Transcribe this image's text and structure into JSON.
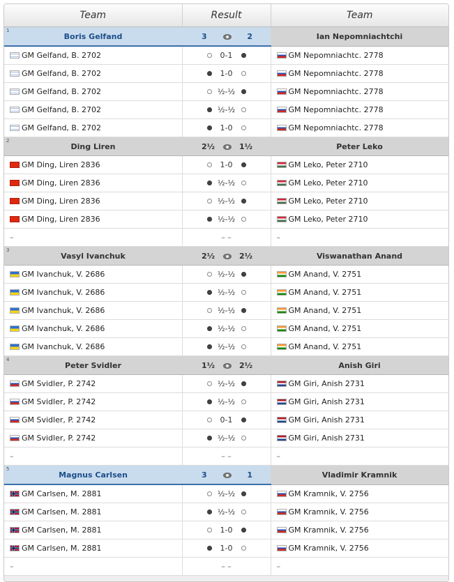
{
  "header": {
    "team_left": "Team",
    "result": "Result",
    "team_right": "Team"
  },
  "empty_dash": "–",
  "empty_result": "– –",
  "matches": [
    {
      "round": "1",
      "team1": "Boris Gelfand",
      "score1": "3",
      "score2": "2",
      "team2": "Ian Nepomniachtchi",
      "winner": "left",
      "games": [
        {
          "p1": "GM Gelfand, B. 2702",
          "f1": "israel",
          "c1": "white",
          "res": "0-1",
          "c2": "black",
          "p2": "GM Nepomniachtc. 2778",
          "f2": "russia"
        },
        {
          "p1": "GM Gelfand, B. 2702",
          "f1": "israel",
          "c1": "black",
          "res": "1-0",
          "c2": "white",
          "p2": "GM Nepomniachtc. 2778",
          "f2": "russia"
        },
        {
          "p1": "GM Gelfand, B. 2702",
          "f1": "israel",
          "c1": "white",
          "res": "½-½",
          "c2": "black",
          "p2": "GM Nepomniachtc. 2778",
          "f2": "russia"
        },
        {
          "p1": "GM Gelfand, B. 2702",
          "f1": "israel",
          "c1": "black",
          "res": "½-½",
          "c2": "white",
          "p2": "GM Nepomniachtc. 2778",
          "f2": "russia"
        },
        {
          "p1": "GM Gelfand, B. 2702",
          "f1": "israel",
          "c1": "black",
          "res": "1-0",
          "c2": "white",
          "p2": "GM Nepomniachtc. 2778",
          "f2": "russia"
        }
      ],
      "empty_row": false
    },
    {
      "round": "2",
      "team1": "Ding Liren",
      "score1": "2½",
      "score2": "1½",
      "team2": "Peter Leko",
      "winner": "none",
      "games": [
        {
          "p1": "GM Ding, Liren 2836",
          "f1": "china",
          "c1": "white",
          "res": "1-0",
          "c2": "black",
          "p2": "GM Leko, Peter 2710",
          "f2": "hungary"
        },
        {
          "p1": "GM Ding, Liren 2836",
          "f1": "china",
          "c1": "black",
          "res": "½-½",
          "c2": "white",
          "p2": "GM Leko, Peter 2710",
          "f2": "hungary"
        },
        {
          "p1": "GM Ding, Liren 2836",
          "f1": "china",
          "c1": "white",
          "res": "½-½",
          "c2": "black",
          "p2": "GM Leko, Peter 2710",
          "f2": "hungary"
        },
        {
          "p1": "GM Ding, Liren 2836",
          "f1": "china",
          "c1": "black",
          "res": "½-½",
          "c2": "white",
          "p2": "GM Leko, Peter 2710",
          "f2": "hungary"
        }
      ],
      "empty_row": true
    },
    {
      "round": "3",
      "team1": "Vasyl Ivanchuk",
      "score1": "2½",
      "score2": "2½",
      "team2": "Viswanathan Anand",
      "winner": "none",
      "games": [
        {
          "p1": "GM Ivanchuk, V. 2686",
          "f1": "ukraine",
          "c1": "white",
          "res": "½-½",
          "c2": "black",
          "p2": "GM Anand, V. 2751",
          "f2": "india"
        },
        {
          "p1": "GM Ivanchuk, V. 2686",
          "f1": "ukraine",
          "c1": "black",
          "res": "½-½",
          "c2": "white",
          "p2": "GM Anand, V. 2751",
          "f2": "india"
        },
        {
          "p1": "GM Ivanchuk, V. 2686",
          "f1": "ukraine",
          "c1": "white",
          "res": "½-½",
          "c2": "black",
          "p2": "GM Anand, V. 2751",
          "f2": "india"
        },
        {
          "p1": "GM Ivanchuk, V. 2686",
          "f1": "ukraine",
          "c1": "black",
          "res": "½-½",
          "c2": "white",
          "p2": "GM Anand, V. 2751",
          "f2": "india"
        },
        {
          "p1": "GM Ivanchuk, V. 2686",
          "f1": "ukraine",
          "c1": "black",
          "res": "½-½",
          "c2": "white",
          "p2": "GM Anand, V. 2751",
          "f2": "india"
        }
      ],
      "empty_row": false
    },
    {
      "round": "4",
      "team1": "Peter Svidler",
      "score1": "1½",
      "score2": "2½",
      "team2": "Anish Giri",
      "winner": "none",
      "games": [
        {
          "p1": "GM Svidler, P. 2742",
          "f1": "russia",
          "c1": "white",
          "res": "½-½",
          "c2": "black",
          "p2": "GM Giri, Anish 2731",
          "f2": "netherlands"
        },
        {
          "p1": "GM Svidler, P. 2742",
          "f1": "russia",
          "c1": "black",
          "res": "½-½",
          "c2": "white",
          "p2": "GM Giri, Anish 2731",
          "f2": "netherlands"
        },
        {
          "p1": "GM Svidler, P. 2742",
          "f1": "russia",
          "c1": "white",
          "res": "0-1",
          "c2": "black",
          "p2": "GM Giri, Anish 2731",
          "f2": "netherlands"
        },
        {
          "p1": "GM Svidler, P. 2742",
          "f1": "russia",
          "c1": "black",
          "res": "½-½",
          "c2": "white",
          "p2": "GM Giri, Anish 2731",
          "f2": "netherlands"
        }
      ],
      "empty_row": true
    },
    {
      "round": "5",
      "team1": "Magnus Carlsen",
      "score1": "3",
      "score2": "1",
      "team2": "Vladimir Kramnik",
      "winner": "left",
      "games": [
        {
          "p1": "GM Carlsen, M. 2881",
          "f1": "norway",
          "c1": "white",
          "res": "½-½",
          "c2": "black",
          "p2": "GM Kramnik, V. 2756",
          "f2": "russia"
        },
        {
          "p1": "GM Carlsen, M. 2881",
          "f1": "norway",
          "c1": "black",
          "res": "½-½",
          "c2": "white",
          "p2": "GM Kramnik, V. 2756",
          "f2": "russia"
        },
        {
          "p1": "GM Carlsen, M. 2881",
          "f1": "norway",
          "c1": "white",
          "res": "1-0",
          "c2": "black",
          "p2": "GM Kramnik, V. 2756",
          "f2": "russia"
        },
        {
          "p1": "GM Carlsen, M. 2881",
          "f1": "norway",
          "c1": "black",
          "res": "1-0",
          "c2": "white",
          "p2": "GM Kramnik, V. 2756",
          "f2": "russia"
        }
      ],
      "empty_row": true
    }
  ]
}
